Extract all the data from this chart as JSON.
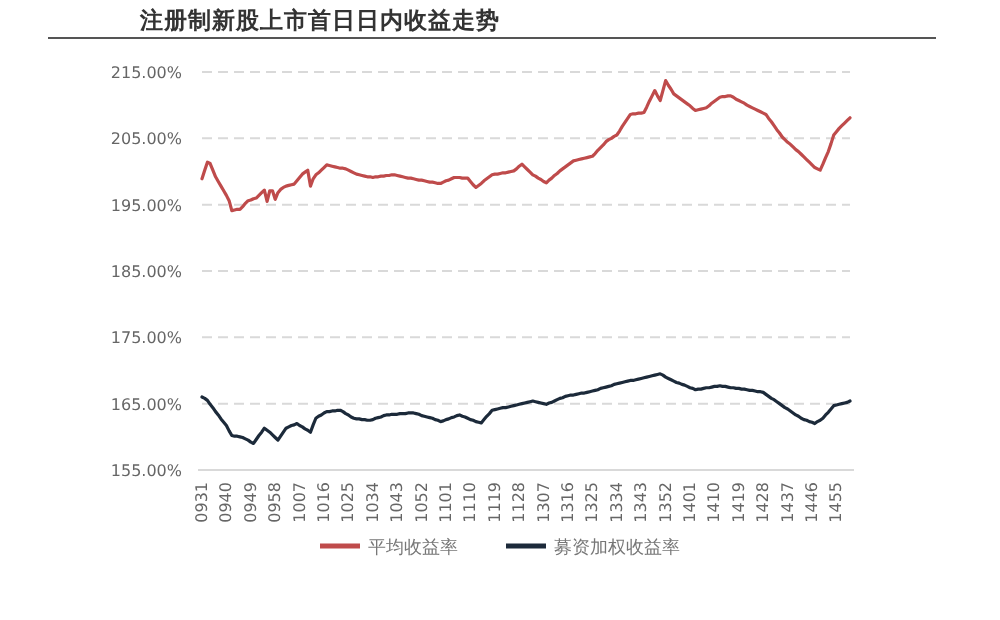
{
  "chart_data": {
    "type": "line",
    "title": "注册制新股上市首日日内收益走势",
    "categories": [
      "0931",
      null,
      null,
      null,
      null,
      null,
      null,
      null,
      null,
      "0940",
      null,
      null,
      null,
      null,
      null,
      null,
      null,
      null,
      "0949",
      null,
      null,
      null,
      null,
      null,
      null,
      null,
      null,
      "0958",
      null,
      null,
      null,
      null,
      null,
      null,
      null,
      null,
      "1007",
      null,
      null,
      null,
      null,
      null,
      null,
      null,
      null,
      "1016",
      null,
      null,
      null,
      null,
      null,
      null,
      null,
      null,
      "1025",
      null,
      null,
      null,
      null,
      null,
      null,
      null,
      null,
      "1034",
      null,
      null,
      null,
      null,
      null,
      null,
      null,
      null,
      "1043",
      null,
      null,
      null,
      null,
      null,
      null,
      null,
      null,
      "1052",
      null,
      null,
      null,
      null,
      null,
      null,
      null,
      null,
      "1101",
      null,
      null,
      null,
      null,
      null,
      null,
      null,
      null,
      "1110",
      null,
      null,
      null,
      null,
      null,
      null,
      null,
      null,
      "1119",
      null,
      null,
      null,
      null,
      null,
      null,
      null,
      null,
      "1128",
      null,
      null,
      null,
      null,
      null,
      null,
      null,
      null,
      "1307",
      null,
      null,
      null,
      null,
      null,
      null,
      null,
      null,
      "1316",
      null,
      null,
      null,
      null,
      null,
      null,
      null,
      null,
      "1325",
      null,
      null,
      null,
      null,
      null,
      null,
      null,
      null,
      "1334",
      null,
      null,
      null,
      null,
      null,
      null,
      null,
      null,
      "1343",
      null,
      null,
      null,
      null,
      null,
      null,
      null,
      null,
      "1352",
      null,
      null,
      null,
      null,
      null,
      null,
      null,
      null,
      "1401",
      null,
      null,
      null,
      null,
      null,
      null,
      null,
      null,
      "1410",
      null,
      null,
      null,
      null,
      null,
      null,
      null,
      null,
      "1419",
      null,
      null,
      null,
      null,
      null,
      null,
      null,
      null,
      "1428",
      null,
      null,
      null,
      null,
      null,
      null,
      null,
      null,
      "1437",
      null,
      null,
      null,
      null,
      null,
      null,
      null,
      null,
      "1446",
      null,
      null,
      null,
      null,
      null,
      null,
      null,
      null,
      "1455",
      null,
      null,
      null,
      null,
      null
    ],
    "series": [
      {
        "name": "平均收益率",
        "color": "#bf4b4b",
        "values": [
          198.9,
          200.2,
          201.4,
          201.2,
          200.2,
          199.2,
          198.5,
          197.8,
          197.1,
          196.4,
          195.6,
          194.1,
          194.2,
          194.3,
          194.3,
          194.7,
          195.2,
          195.6,
          195.7,
          195.9,
          196,
          196.4,
          196.8,
          197.2,
          195.5,
          197.1,
          197.1,
          195.8,
          196.8,
          197.3,
          197.6,
          197.8,
          197.9,
          198,
          198.1,
          198.6,
          199.1,
          199.6,
          199.9,
          200.2,
          197.8,
          198.9,
          199.5,
          199.8,
          200.2,
          200.6,
          201,
          200.9,
          200.8,
          200.7,
          200.6,
          200.5,
          200.5,
          200.4,
          200.2,
          200,
          199.8,
          199.6,
          199.5,
          199.4,
          199.3,
          199.2,
          199.2,
          199.1,
          199.2,
          199.2,
          199.3,
          199.3,
          199.4,
          199.4,
          199.5,
          199.5,
          199.4,
          199.3,
          199.2,
          199.1,
          199,
          199,
          198.9,
          198.8,
          198.7,
          198.7,
          198.6,
          198.5,
          198.4,
          198.4,
          198.3,
          198.2,
          198.2,
          198.4,
          198.6,
          198.7,
          198.9,
          199.1,
          199.1,
          199.1,
          199,
          199,
          199,
          198.5,
          198,
          197.6,
          197.9,
          198.2,
          198.6,
          198.9,
          199.2,
          199.5,
          199.6,
          199.6,
          199.7,
          199.8,
          199.8,
          199.9,
          200,
          200.1,
          200.4,
          200.8,
          201.1,
          200.7,
          200.3,
          199.9,
          199.5,
          199.3,
          199,
          198.8,
          198.5,
          198.3,
          198.7,
          199,
          199.4,
          199.7,
          200.1,
          200.4,
          200.7,
          201,
          201.3,
          201.6,
          201.7,
          201.8,
          201.9,
          202,
          202.1,
          202.2,
          202.3,
          202.7,
          203.2,
          203.6,
          204,
          204.5,
          204.8,
          205,
          205.3,
          205.5,
          206.1,
          206.8,
          207.4,
          208,
          208.6,
          208.7,
          208.7,
          208.8,
          208.8,
          208.9,
          209.7,
          210.6,
          211.4,
          212.2,
          211.4,
          210.7,
          212.2,
          213.7,
          213,
          212.4,
          211.7,
          211.4,
          211.1,
          210.8,
          210.5,
          210.2,
          209.9,
          209.5,
          209.2,
          209.3,
          209.4,
          209.5,
          209.6,
          209.9,
          210.3,
          210.6,
          210.9,
          211.2,
          211.3,
          211.3,
          211.4,
          211.4,
          211.2,
          210.9,
          210.7,
          210.5,
          210.3,
          210,
          209.8,
          209.6,
          209.4,
          209.2,
          209,
          208.8,
          208.6,
          208,
          207.5,
          206.9,
          206.3,
          205.8,
          205.2,
          204.8,
          204.4,
          204.1,
          203.7,
          203.3,
          203,
          202.6,
          202.2,
          201.8,
          201.4,
          201,
          200.6,
          200.4,
          200.2,
          201.1,
          202.1,
          203,
          204.2,
          205.5,
          206,
          206.5,
          206.9,
          207.3,
          207.7,
          208.1
        ]
      },
      {
        "name": "募资加权收益率",
        "color": "#1c2a3a",
        "values": [
          166,
          165.8,
          165.5,
          164.9,
          164.4,
          163.8,
          163.3,
          162.7,
          162.2,
          161.7,
          160.9,
          160.2,
          160.1,
          160.1,
          160,
          159.9,
          159.7,
          159.5,
          159.2,
          159,
          159.6,
          160.2,
          160.7,
          161.3,
          161,
          160.7,
          160.3,
          159.9,
          159.5,
          160.1,
          160.7,
          161.3,
          161.5,
          161.7,
          161.8,
          162,
          161.7,
          161.5,
          161.2,
          161,
          160.7,
          161.8,
          162.8,
          163.1,
          163.3,
          163.6,
          163.8,
          163.8,
          163.9,
          163.9,
          164,
          164,
          163.8,
          163.5,
          163.3,
          163,
          162.8,
          162.7,
          162.7,
          162.6,
          162.6,
          162.5,
          162.5,
          162.6,
          162.8,
          162.9,
          163,
          163.2,
          163.3,
          163.3,
          163.4,
          163.4,
          163.4,
          163.5,
          163.5,
          163.5,
          163.6,
          163.6,
          163.6,
          163.5,
          163.4,
          163.2,
          163.1,
          163,
          162.9,
          162.8,
          162.6,
          162.5,
          162.3,
          162.4,
          162.6,
          162.7,
          162.9,
          163,
          163.2,
          163.3,
          163.1,
          163,
          162.8,
          162.6,
          162.5,
          162.3,
          162.2,
          162.1,
          162.6,
          163.1,
          163.5,
          164,
          164.1,
          164.2,
          164.3,
          164.4,
          164.4,
          164.5,
          164.6,
          164.7,
          164.8,
          164.9,
          165,
          165.1,
          165.2,
          165.3,
          165.4,
          165.3,
          165.2,
          165.1,
          165,
          164.9,
          165.1,
          165.2,
          165.4,
          165.6,
          165.8,
          165.9,
          166.1,
          166.2,
          166.3,
          166.3,
          166.4,
          166.5,
          166.6,
          166.6,
          166.7,
          166.8,
          166.9,
          167,
          167.1,
          167.3,
          167.4,
          167.5,
          167.6,
          167.7,
          167.9,
          168,
          168.1,
          168.2,
          168.3,
          168.4,
          168.5,
          168.5,
          168.6,
          168.7,
          168.8,
          168.9,
          169,
          169.1,
          169.2,
          169.3,
          169.4,
          169.5,
          169.3,
          169,
          168.8,
          168.6,
          168.4,
          168.2,
          168.1,
          167.9,
          167.8,
          167.6,
          167.4,
          167.3,
          167.1,
          167.2,
          167.2,
          167.3,
          167.4,
          167.4,
          167.5,
          167.6,
          167.6,
          167.7,
          167.6,
          167.6,
          167.5,
          167.4,
          167.4,
          167.3,
          167.3,
          167.2,
          167.2,
          167.1,
          167,
          167,
          166.9,
          166.8,
          166.8,
          166.7,
          166.4,
          166.1,
          165.8,
          165.6,
          165.3,
          165,
          164.7,
          164.4,
          164.2,
          163.9,
          163.6,
          163.3,
          163.1,
          162.8,
          162.6,
          162.5,
          162.3,
          162.2,
          162,
          162.3,
          162.5,
          162.8,
          163.3,
          163.7,
          164.2,
          164.7,
          164.8,
          164.9,
          165,
          165.1,
          165.2,
          165.4
        ]
      }
    ],
    "ylim": [
      155,
      215
    ],
    "yticks": [
      {
        "value": 155,
        "label": "155.00%"
      },
      {
        "value": 165,
        "label": "165.00%"
      },
      {
        "value": 175,
        "label": "175.00%"
      },
      {
        "value": 185,
        "label": "185.00%"
      },
      {
        "value": 195,
        "label": "195.00%"
      },
      {
        "value": 205,
        "label": "205.00%"
      },
      {
        "value": 215,
        "label": "215.00%"
      }
    ],
    "grid": "y",
    "legend": "bottom"
  }
}
